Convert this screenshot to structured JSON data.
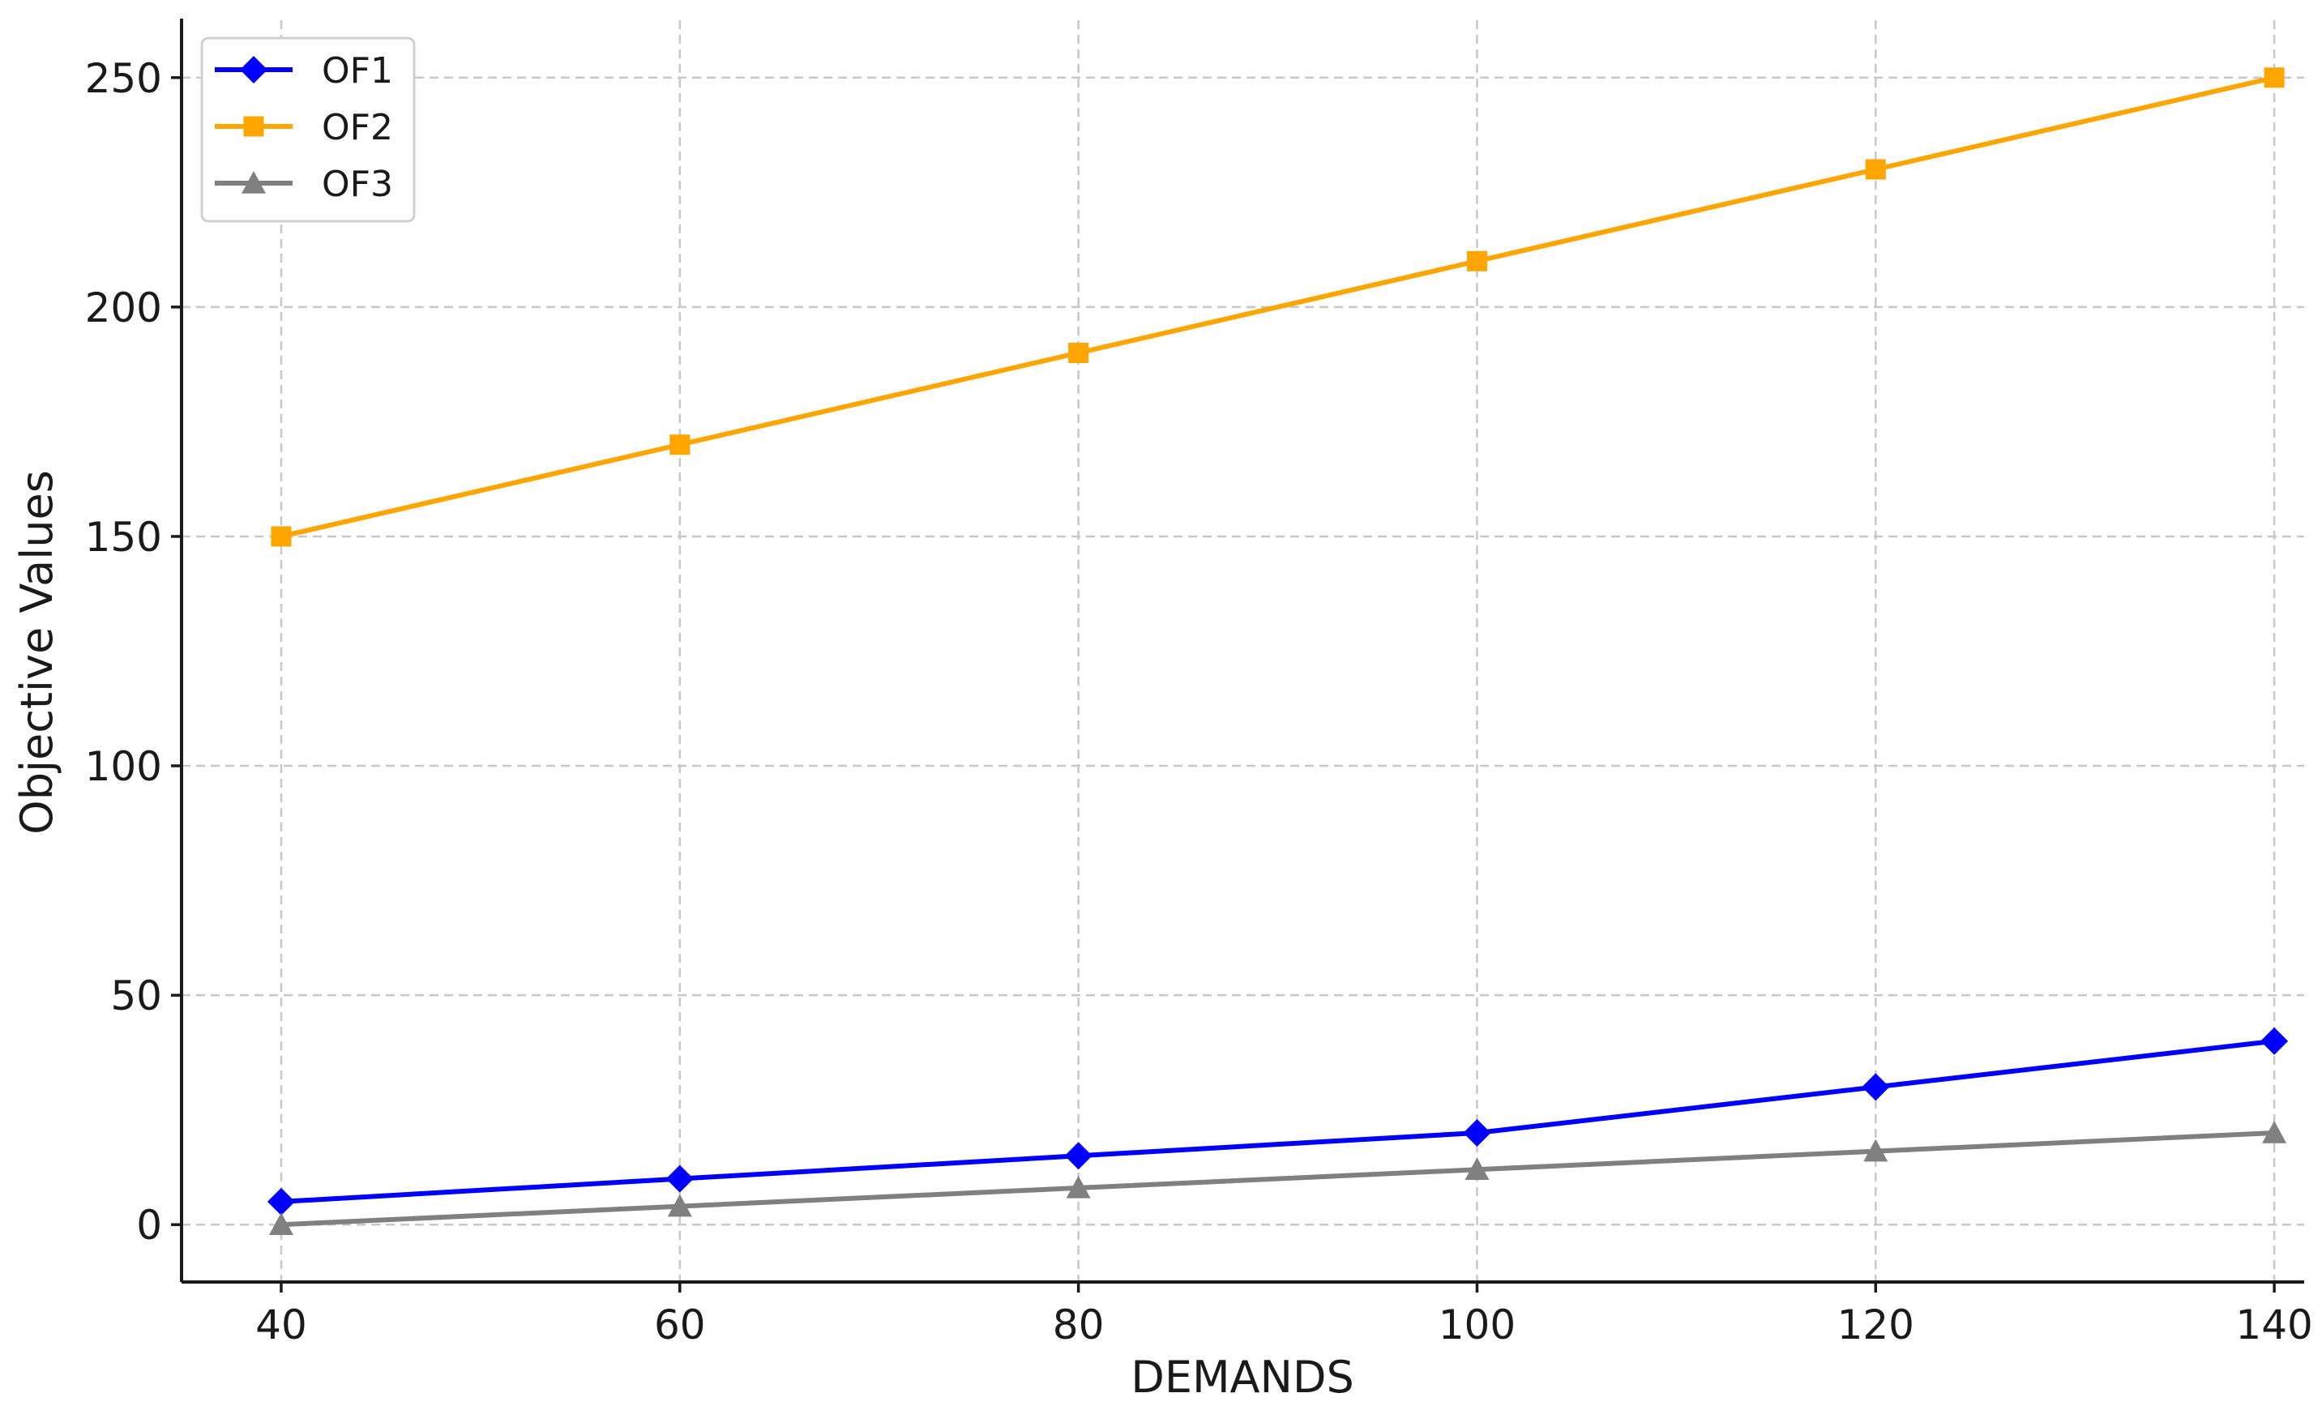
{
  "chart_data": {
    "type": "line",
    "title": "",
    "xlabel": "DEMANDS",
    "ylabel": "Objective Values",
    "x": [
      40,
      60,
      80,
      100,
      120,
      140
    ],
    "xticks": [
      "40",
      "60",
      "80",
      "100",
      "120",
      "140"
    ],
    "yticks": [
      "0",
      "50",
      "100",
      "150",
      "200",
      "250"
    ],
    "ytick_values": [
      0,
      50,
      100,
      150,
      200,
      250
    ],
    "xlim": [
      35,
      141.5
    ],
    "ylim": [
      -12.5,
      262.5
    ],
    "grid": true,
    "legend_position": "top-left",
    "series": [
      {
        "name": "OF1",
        "color": "#0000ff",
        "marker": "diamond",
        "values": [
          5,
          10,
          15,
          20,
          30,
          40
        ]
      },
      {
        "name": "OF2",
        "color": "#ffa500",
        "marker": "square",
        "values": [
          150,
          170,
          190,
          210,
          230,
          250
        ]
      },
      {
        "name": "OF3",
        "color": "#808080",
        "marker": "triangle",
        "values": [
          0,
          4,
          8,
          12,
          16,
          20
        ]
      }
    ]
  }
}
